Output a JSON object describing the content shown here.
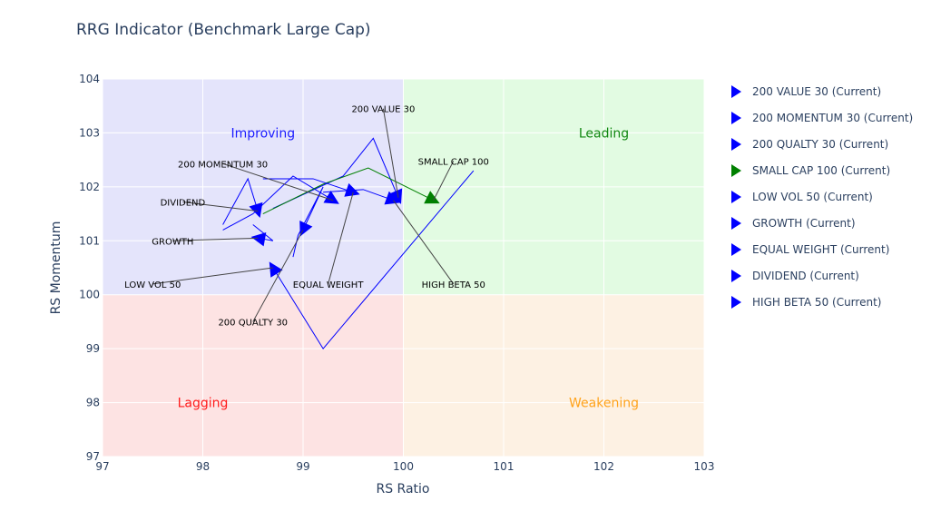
{
  "chart_data": {
    "type": "scatter",
    "title": "RRG Indicator (Benchmark Large Cap)",
    "xlabel": "RS Ratio",
    "ylabel": "RS Momentum",
    "xlim": [
      97,
      103
    ],
    "ylim": [
      97,
      104
    ],
    "x_ticks": [
      97,
      98,
      99,
      100,
      101,
      102,
      103
    ],
    "y_ticks": [
      97,
      98,
      99,
      100,
      101,
      102,
      103,
      104
    ],
    "grid": true,
    "legend_position": "right",
    "quadrants": [
      {
        "name": "Improving",
        "x": [
          97,
          100
        ],
        "y": [
          100,
          104
        ],
        "fill": "#e4e4fb",
        "label_color": "#1a1aff",
        "label_at": [
          98.6,
          103
        ]
      },
      {
        "name": "Leading",
        "x": [
          100,
          103
        ],
        "y": [
          100,
          104
        ],
        "fill": "#e2fbe2",
        "label_color": "#118811",
        "label_at": [
          102,
          103
        ]
      },
      {
        "name": "Lagging",
        "x": [
          97,
          100
        ],
        "y": [
          97,
          100
        ],
        "fill": "#fde3e3",
        "label_color": "#ff1a1a",
        "label_at": [
          98,
          98
        ]
      },
      {
        "name": "Weakening",
        "x": [
          100,
          103
        ],
        "y": [
          97,
          100
        ],
        "fill": "#fdf1e3",
        "label_color": "#ffa21a",
        "label_at": [
          102,
          98
        ]
      }
    ],
    "series": [
      {
        "name": "200 VALUE 30 (Current)",
        "color": "#0000ff",
        "x": [
          98.7,
          99.4,
          99.7,
          99.95
        ],
        "y": [
          101.6,
          102.2,
          102.9,
          101.8
        ],
        "label": "200 VALUE 30",
        "label_at": [
          99.8,
          103.45
        ]
      },
      {
        "name": "200 MOMENTUM 30 (Current)",
        "color": "#0000ff",
        "x": [
          98.2,
          98.5,
          98.9,
          99.3
        ],
        "y": [
          101.2,
          101.5,
          102.2,
          101.75
        ],
        "label": "200 MOMENTUM 30",
        "label_at": [
          98.2,
          102.43
        ]
      },
      {
        "name": "200 QUALTY 30 (Current)",
        "color": "#0000ff",
        "x": [
          98.9,
          98.95,
          99.2,
          99.0
        ],
        "y": [
          100.7,
          101.1,
          102.0,
          101.2
        ],
        "label": "200 QUALTY 30",
        "label_at": [
          98.5,
          99.5
        ]
      },
      {
        "name": "SMALL CAP 100 (Current)",
        "color": "#008000",
        "x": [
          98.6,
          99.2,
          99.65,
          100.3
        ],
        "y": [
          101.5,
          102.05,
          102.35,
          101.75
        ],
        "label": "SMALL CAP 100",
        "label_at": [
          100.5,
          102.48
        ]
      },
      {
        "name": "LOW VOL 50 (Current)",
        "color": "#0000ff",
        "x": [
          100.7,
          99.2,
          98.7
        ],
        "y": [
          102.3,
          99.0,
          100.5
        ],
        "label": "LOW VOL 50",
        "label_at": [
          97.5,
          100.2
        ]
      },
      {
        "name": "GROWTH (Current)",
        "color": "#0000ff",
        "x": [
          98.5,
          98.7,
          98.55
        ],
        "y": [
          101.3,
          101.0,
          101.05
        ],
        "label": "GROWTH",
        "label_at": [
          97.7,
          101.0
        ]
      },
      {
        "name": "EQUAL WEIGHT (Current)",
        "color": "#0000ff",
        "x": [
          98.6,
          99.1,
          99.5
        ],
        "y": [
          102.15,
          102.15,
          101.9
        ],
        "label": "EQUAL WEIGHT",
        "label_at": [
          99.25,
          100.2
        ]
      },
      {
        "name": "DIVIDEND (Current)",
        "color": "#0000ff",
        "x": [
          98.2,
          98.45,
          98.55
        ],
        "y": [
          101.3,
          102.15,
          101.55
        ],
        "label": "DIVIDEND",
        "label_at": [
          97.8,
          101.72
        ]
      },
      {
        "name": "HIGH BETA 50 (Current)",
        "color": "#0000ff",
        "x": [
          99.2,
          99.6,
          99.9
        ],
        "y": [
          101.9,
          101.95,
          101.75
        ],
        "label": "HIGH BETA 50",
        "label_at": [
          100.5,
          100.2
        ]
      }
    ]
  }
}
